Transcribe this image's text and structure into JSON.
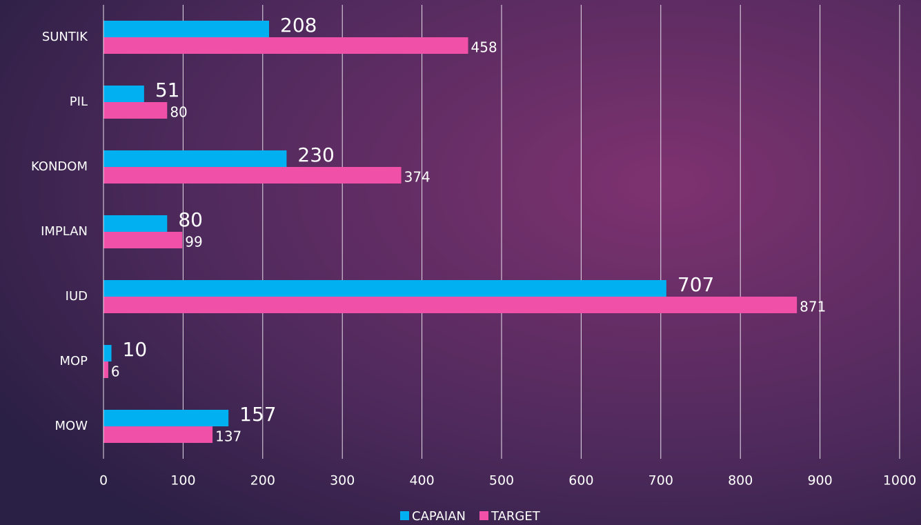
{
  "chart_data": {
    "type": "bar",
    "orientation": "horizontal",
    "categories": [
      "SUNTIK",
      "PIL",
      "KONDOM",
      "IMPLAN",
      "IUD",
      "MOP",
      "MOW"
    ],
    "series": [
      {
        "name": "CAPAIAN",
        "color": "#00b0f0",
        "values": [
          208,
          51,
          230,
          80,
          707,
          10,
          157
        ]
      },
      {
        "name": "TARGET",
        "color": "#f050a8",
        "values": [
          458,
          80,
          374,
          99,
          871,
          6,
          137
        ]
      }
    ],
    "xlim": [
      0,
      1000
    ],
    "xticks": [
      0,
      100,
      200,
      300,
      400,
      500,
      600,
      700,
      800,
      900,
      1000
    ],
    "grid": true,
    "legend": "bottom"
  }
}
